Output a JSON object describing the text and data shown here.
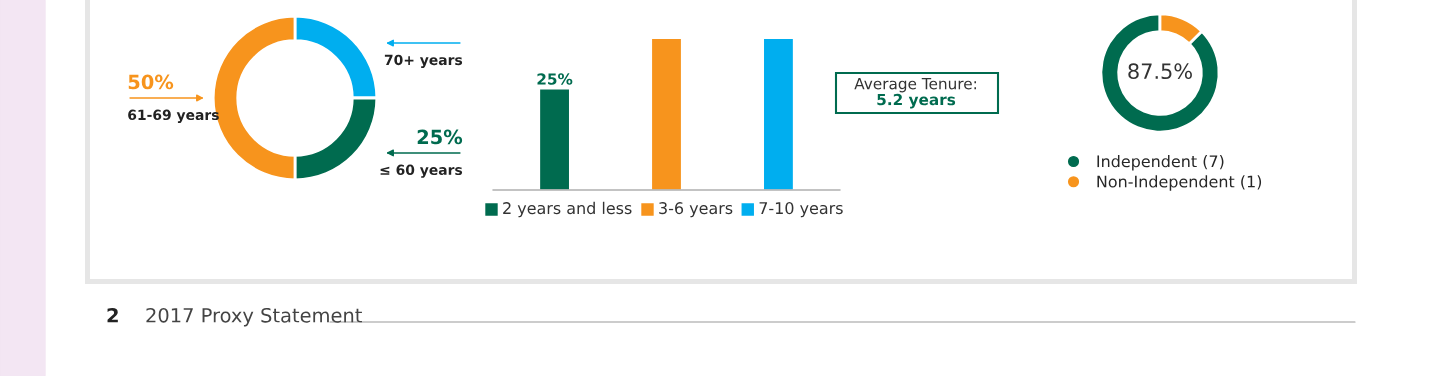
{
  "chart_data": [
    {
      "type": "donut",
      "categories": [
        "70+ years",
        "≤ 60 years",
        "61-69 years"
      ],
      "values": [
        25,
        25,
        50
      ],
      "colors": [
        "#00aeef",
        "#006b4f",
        "#f7941d"
      ],
      "value_labels": [
        null,
        "25%",
        "50%"
      ],
      "legend": "right"
    },
    {
      "type": "bar",
      "categories": [
        "2 years and less",
        "3-6 years",
        "7-10 years"
      ],
      "values": [
        25,
        37.5,
        37.5
      ],
      "colors": [
        "#006b4f",
        "#f7941d",
        "#00aeef"
      ],
      "tick_labels": false,
      "value_labels": [
        "25%",
        null,
        null
      ],
      "annotations": [
        "Average Tenure:",
        "5.2 years"
      ]
    },
    {
      "type": "donut",
      "categories": [
        "Independent (7)",
        "Non-Independent (1)"
      ],
      "values": [
        87.5,
        12.5
      ],
      "colors": [
        "#006b4f",
        "#f7941d"
      ],
      "value_labels": [
        "87.5%",
        null
      ],
      "legend": "bottom",
      "marker": "circle",
      "annotations": [
        "2",
        "2017 Proxy Statement"
      ]
    }
  ]
}
